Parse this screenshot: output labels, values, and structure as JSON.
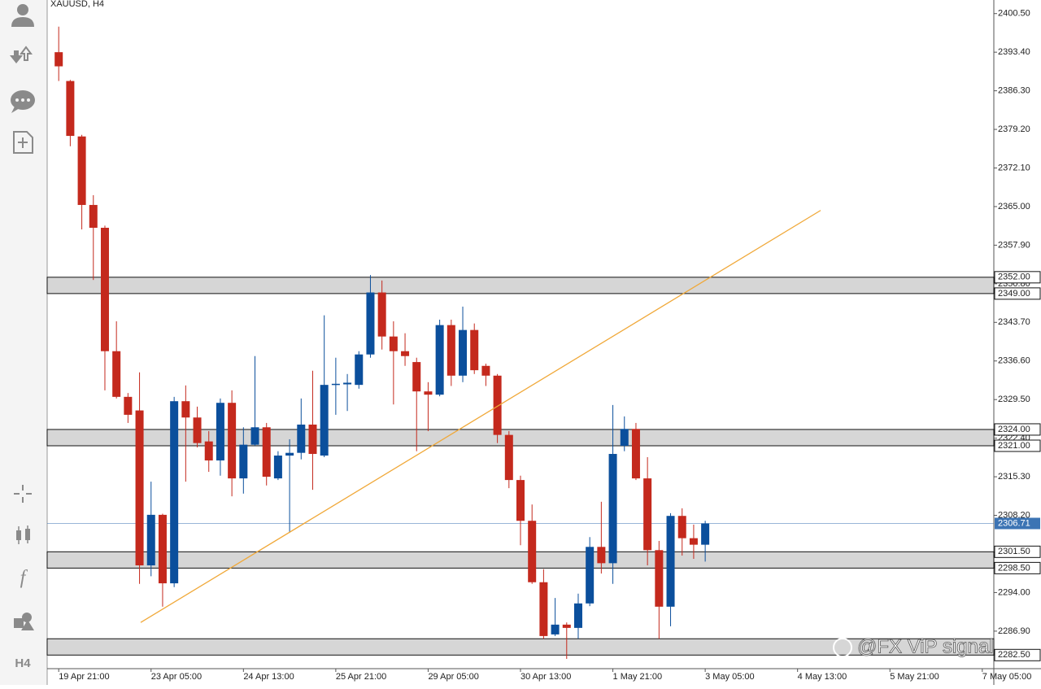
{
  "chart_data": {
    "type": "candlestick",
    "title": "XAUUSD, H4",
    "open": [
      2393.4,
      2388.1,
      2377.9,
      2365.3,
      2361.1,
      2338.4,
      2330.0,
      2327.5,
      2299.0,
      2308.3,
      2295.7,
      2329.2,
      2326.2,
      2321.8,
      2318.3,
      2328.9,
      2315.0,
      2321.2,
      2324.4,
      2315.0,
      2319.2,
      2319.7,
      2324.9,
      2319.2,
      2332.2,
      2332.3,
      2332.2,
      2337.8,
      2349.2,
      2341.1,
      2338.4,
      2336.4,
      2331.0,
      2330.4,
      2343.2,
      2333.9,
      2342.3,
      2335.7,
      2333.9,
      2323.0,
      2314.7,
      2307.2,
      2295.9,
      2286.3,
      2288.1,
      2287.5,
      2292.0,
      2302.4,
      2299.4,
      2321.0,
      2324.1,
      2315.0,
      2301.8,
      2291.4,
      2308.1,
      2304.0,
      2302.8
    ],
    "high": [
      2398.1,
      2388.3,
      2378.2,
      2367.1,
      2361.5,
      2343.9,
      2330.7,
      2334.5,
      2314.4,
      2308.5,
      2330.0,
      2332.1,
      2328.2,
      2323.7,
      2329.7,
      2331.2,
      2324.4,
      2337.5,
      2325.2,
      2320.0,
      2322.2,
      2329.7,
      2334.8,
      2345.0,
      2337.2,
      2334.2,
      2338.4,
      2352.4,
      2351.4,
      2343.9,
      2341.7,
      2337.2,
      2332.7,
      2344.2,
      2344.2,
      2346.6,
      2343.5,
      2336.1,
      2334.2,
      2323.7,
      2315.5,
      2310.2,
      2298.3,
      2293.0,
      2288.5,
      2293.8,
      2304.2,
      2310.7,
      2328.5,
      2326.4,
      2325.2,
      2318.9,
      2303.5,
      2308.6,
      2309.5,
      2306.5,
      2307.2
    ],
    "low": [
      2388.1,
      2376.1,
      2360.8,
      2351.5,
      2331.2,
      2329.7,
      2325.2,
      2295.6,
      2297.0,
      2291.4,
      2295.0,
      2314.4,
      2320.7,
      2316.2,
      2315.5,
      2311.7,
      2312.2,
      2321.0,
      2313.7,
      2314.7,
      2305.0,
      2318.5,
      2312.9,
      2318.9,
      2326.7,
      2327.4,
      2331.5,
      2337.2,
      2338.7,
      2328.6,
      2335.7,
      2320.0,
      2323.7,
      2330.1,
      2332.0,
      2332.7,
      2334.2,
      2332.0,
      2321.5,
      2313.2,
      2302.7,
      2295.6,
      2285.5,
      2286.0,
      2281.8,
      2285.5,
      2291.5,
      2297.5,
      2295.6,
      2320.0,
      2314.7,
      2299.0,
      2285.5,
      2287.8,
      2300.8,
      2300.2,
      2299.7
    ],
    "close": [
      2390.8,
      2378.0,
      2365.3,
      2361.1,
      2338.4,
      2330.0,
      2326.7,
      2299.0,
      2308.3,
      2295.7,
      2329.2,
      2326.2,
      2321.5,
      2318.3,
      2328.9,
      2315.0,
      2321.2,
      2324.4,
      2315.3,
      2319.2,
      2319.7,
      2324.9,
      2319.5,
      2332.2,
      2332.4,
      2332.6,
      2337.8,
      2349.2,
      2341.1,
      2338.4,
      2337.5,
      2331.0,
      2330.4,
      2343.2,
      2333.9,
      2342.3,
      2334.9,
      2333.9,
      2323.0,
      2314.7,
      2307.2,
      2295.9,
      2286.0,
      2288.1,
      2287.5,
      2292.0,
      2302.4,
      2299.4,
      2319.5,
      2324.1,
      2315.0,
      2301.8,
      2291.4,
      2308.1,
      2304.0,
      2302.8,
      2306.7
    ],
    "up_color": "#0b4f9c",
    "down_color": "#c4291d",
    "xlim": [
      -1,
      81
    ],
    "xticks": [
      {
        "value": 0,
        "label": "19 Apr 21:00"
      },
      {
        "value": 8,
        "label": "23 Apr 05:00"
      },
      {
        "value": 16,
        "label": "24 Apr 13:00"
      },
      {
        "value": 24,
        "label": "25 Apr 21:00"
      },
      {
        "value": 32,
        "label": "29 Apr 05:00"
      },
      {
        "value": 40,
        "label": "30 Apr 13:00"
      },
      {
        "value": 48,
        "label": "1 May 21:00"
      },
      {
        "value": 56,
        "label": "3 May 05:00"
      },
      {
        "value": 64,
        "label": "4 May 13:00"
      },
      {
        "value": 72,
        "label": "5 May 21:00"
      },
      {
        "value": 80,
        "label": "7 May 05:00"
      }
    ],
    "ylim": [
      2280.0,
      2403.0
    ],
    "yticks": [
      {
        "value": 2286.9,
        "label": "2286.90"
      },
      {
        "value": 2294,
        "label": "2294.00"
      },
      {
        "value": 2301.1,
        "label": "2301.10"
      },
      {
        "value": 2308.2,
        "label": "2308.20"
      },
      {
        "value": 2315.3,
        "label": "2315.30"
      },
      {
        "value": 2322.4,
        "label": "2322.40"
      },
      {
        "value": 2329.5,
        "label": "2329.50"
      },
      {
        "value": 2336.6,
        "label": "2336.60"
      },
      {
        "value": 2343.7,
        "label": "2343.70"
      },
      {
        "value": 2350.8,
        "label": "2350.80"
      },
      {
        "value": 2357.9,
        "label": "2357.90"
      },
      {
        "value": 2365,
        "label": "2365.00"
      },
      {
        "value": 2372.1,
        "label": "2372.10"
      },
      {
        "value": 2379.2,
        "label": "2379.20"
      },
      {
        "value": 2386.3,
        "label": "2386.30"
      },
      {
        "value": 2393.4,
        "label": "2393.40"
      },
      {
        "value": 2400.5,
        "label": "2400.50"
      }
    ],
    "grid": false,
    "zones": [
      {
        "top": {
          "value": 2352,
          "label": "2352.00"
        },
        "bottom": {
          "value": 2349,
          "label": "2349.00"
        }
      },
      {
        "top": {
          "value": 2324,
          "label": "2324.00"
        },
        "bottom": {
          "value": 2321,
          "label": "2321.00"
        }
      },
      {
        "top": {
          "value": 2301.5,
          "label": "2301.50"
        },
        "bottom": {
          "value": 2298.5,
          "label": "2298.50"
        }
      },
      {
        "top": 2285.5,
        "bottom": {
          "value": 2282.5,
          "label": "2282.50"
        }
      }
    ],
    "zone_color": "#d6d6d6",
    "current_price": 2306.71,
    "current_price_color": "#3c74b4",
    "trendline": {
      "x": [
        7.1,
        66.0
      ],
      "y": [
        2288.5,
        2364.3
      ],
      "color": "#f0a838"
    }
  },
  "toolbar": {
    "timeframe": "H4"
  },
  "watermark": "@FX ViP signal"
}
